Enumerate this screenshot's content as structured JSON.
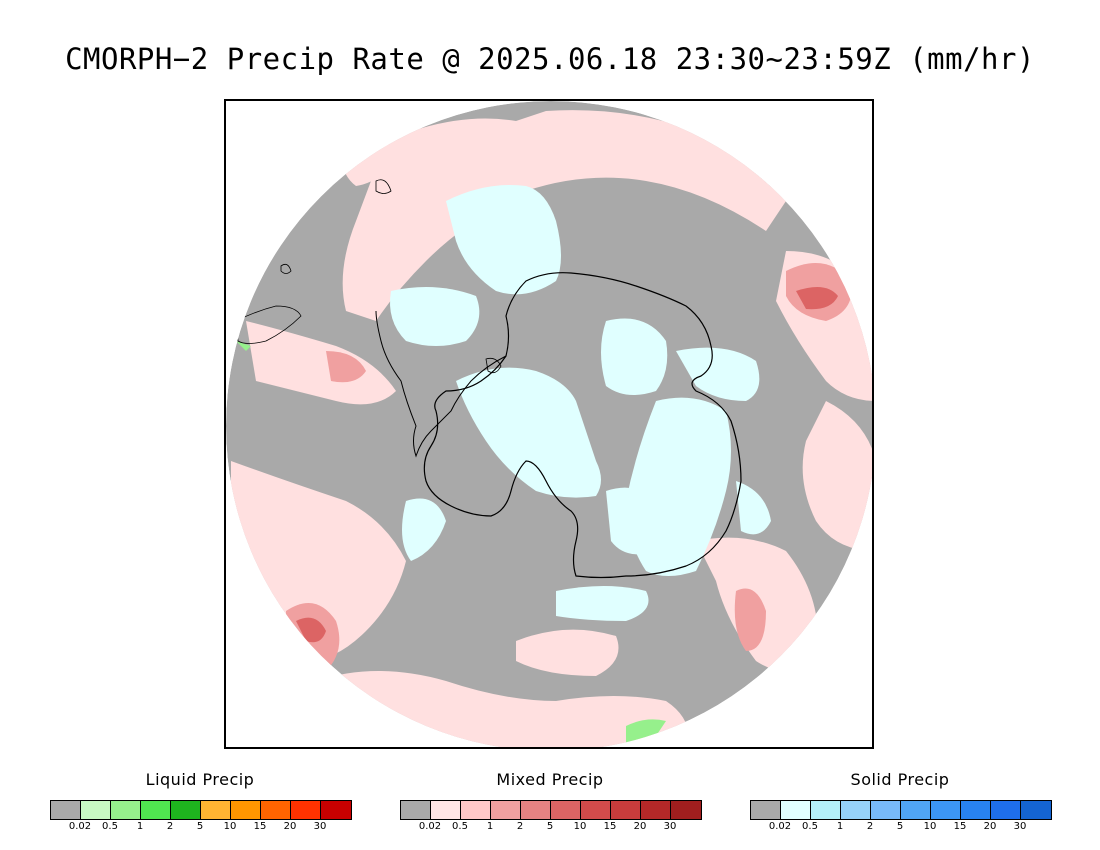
{
  "title": "CMORPH−2 Precip Rate @ 2025.06.18 23:30~23:59Z (mm/hr)",
  "map": {
    "projection": "south polar stereographic",
    "background_color": "#a9a9a9",
    "coast_color": "#000000"
  },
  "legends": [
    {
      "title": "Liquid Precip",
      "colors": [
        "#a9a9a9",
        "#c8fac3",
        "#96f08c",
        "#50e650",
        "#1eb41e",
        "#ffb432",
        "#ff9600",
        "#ff6400",
        "#ff3200",
        "#c80000"
      ],
      "tick_labels": [
        "0.02",
        "0.5",
        "1",
        "2",
        "5",
        "10",
        "15",
        "20",
        "30"
      ]
    },
    {
      "title": "Mixed Precip",
      "colors": [
        "#a9a9a9",
        "#ffe6e6",
        "#ffc8c8",
        "#f0a0a0",
        "#e68282",
        "#dc6464",
        "#d24b4b",
        "#c83c3c",
        "#b42828",
        "#a01e1e"
      ],
      "tick_labels": [
        "0.02",
        "0.5",
        "1",
        "2",
        "5",
        "10",
        "15",
        "20",
        "30"
      ]
    },
    {
      "title": "Solid Precip",
      "colors": [
        "#a9a9a9",
        "#e1ffff",
        "#b4f0fa",
        "#96d2fa",
        "#78b9fa",
        "#50a5f5",
        "#3c96f5",
        "#2882f0",
        "#1e6eeb",
        "#1464d2"
      ],
      "tick_labels": [
        "0.02",
        "0.5",
        "1",
        "2",
        "5",
        "10",
        "15",
        "20",
        "30"
      ]
    }
  ]
}
